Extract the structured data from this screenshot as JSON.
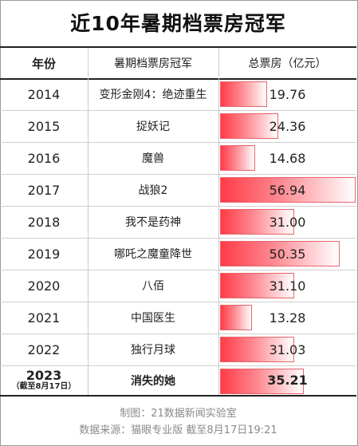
{
  "title": "近10年暑期档票房冠军",
  "header": {
    "year": "年份",
    "film": "暑期档票房冠军",
    "total": "总票房（亿元）"
  },
  "chart_data": {
    "type": "table",
    "unit": "亿元",
    "max_value": 56.94,
    "rows": [
      {
        "year": "2014",
        "film": "变形金刚4：绝迹重生",
        "value": 19.76,
        "label": "19.76"
      },
      {
        "year": "2015",
        "film": "捉妖记",
        "value": 24.36,
        "label": "24.36"
      },
      {
        "year": "2016",
        "film": "魔兽",
        "value": 14.68,
        "label": "14.68"
      },
      {
        "year": "2017",
        "film": "战狼2",
        "value": 56.94,
        "label": "56.94"
      },
      {
        "year": "2018",
        "film": "我不是药神",
        "value": 31.0,
        "label": "31.00"
      },
      {
        "year": "2019",
        "film": "哪吒之魔童降世",
        "value": 50.35,
        "label": "50.35"
      },
      {
        "year": "2020",
        "film": "八佰",
        "value": 31.1,
        "label": "31.10"
      },
      {
        "year": "2021",
        "film": "中国医生",
        "value": 13.28,
        "label": "13.28"
      },
      {
        "year": "2022",
        "film": "独行月球",
        "value": 31.03,
        "label": "31.03"
      },
      {
        "year": "2023",
        "note": "（截至8月17日）",
        "film": "消失的她",
        "value": 35.21,
        "label": "35.21",
        "highlight": true
      }
    ]
  },
  "footer": {
    "credit": "制图：21数据新闻实验室",
    "source": "数据来源：猫眼专业版  截至8月17日19:21"
  }
}
